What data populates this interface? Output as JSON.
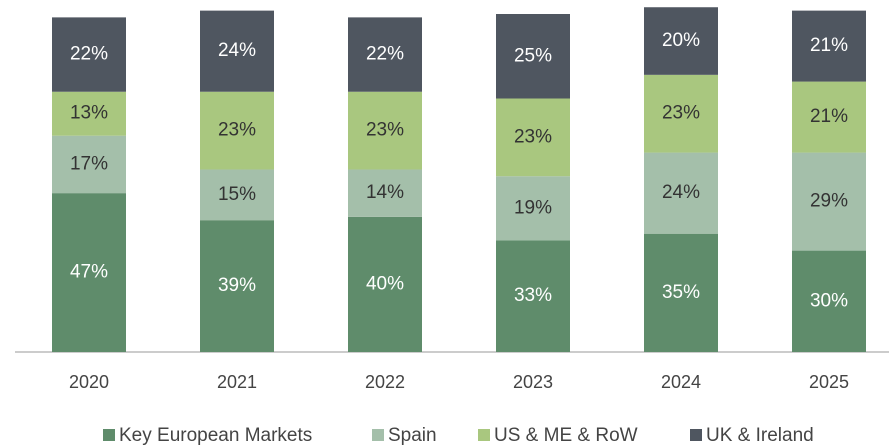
{
  "chart_data": {
    "type": "stacked_bar",
    "categories": [
      "2020",
      "2021",
      "2022",
      "2023",
      "2024",
      "2025"
    ],
    "ylim": [
      0,
      100
    ],
    "series": [
      {
        "name": "Key European Markets",
        "color": "#5f8c6b",
        "values": [
          47,
          39,
          40,
          33,
          35,
          30
        ],
        "value_labels": [
          "47%",
          "39%",
          "40%",
          "33%",
          "35%",
          "30%"
        ]
      },
      {
        "name": "Spain",
        "color": "#a4bfaa",
        "values": [
          17,
          15,
          14,
          19,
          24,
          29
        ],
        "value_labels": [
          "17%",
          "15%",
          "14%",
          "19%",
          "24%",
          "29%"
        ]
      },
      {
        "name": "US & ME & RoW",
        "color": "#a9c77f",
        "values": [
          13,
          23,
          23,
          23,
          23,
          21
        ],
        "value_labels": [
          "13%",
          "23%",
          "23%",
          "23%",
          "23%",
          "21%"
        ]
      },
      {
        "name": "UK & Ireland",
        "color": "#4f5660",
        "values": [
          22,
          24,
          22,
          25,
          20,
          21
        ],
        "value_labels": [
          "22%",
          "24%",
          "22%",
          "25%",
          "20%",
          "21%"
        ]
      }
    ]
  }
}
